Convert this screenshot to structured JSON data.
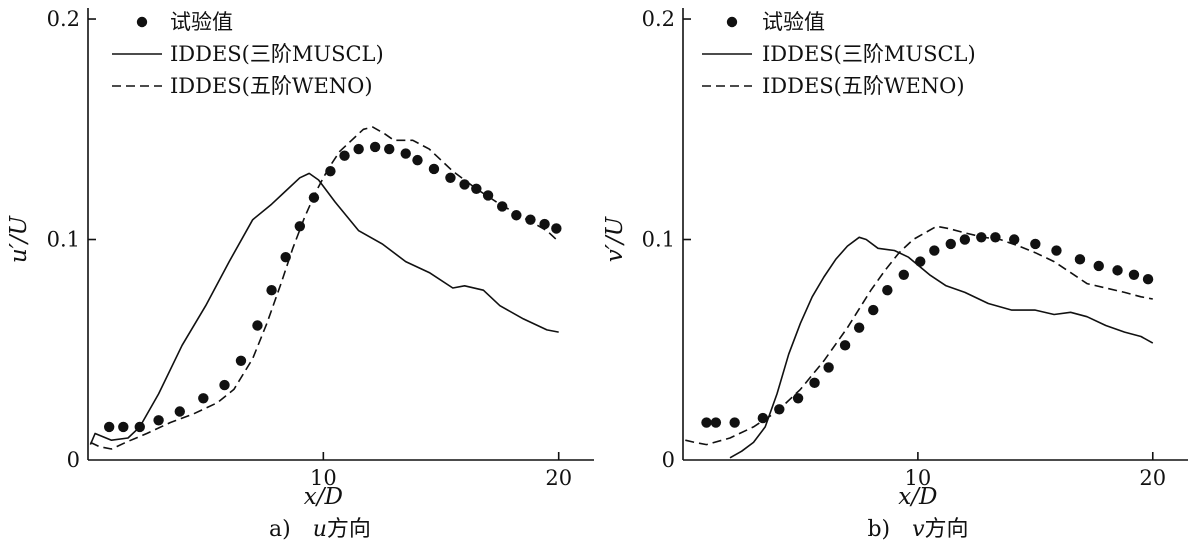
{
  "chart_data": [
    {
      "type": "line",
      "panel": "a",
      "caption_index": "a)",
      "caption_text": "u方向",
      "caption_var": "u",
      "caption_suffix": "方向",
      "xlabel": "x/D",
      "ylabel": "u′/U",
      "xlim": [
        0,
        21.5
      ],
      "ylim": [
        0,
        0.205
      ],
      "x_ticks": [
        {
          "value": 10,
          "label": "10"
        },
        {
          "value": 20,
          "label": "20"
        }
      ],
      "y_ticks": [
        {
          "value": 0,
          "label": "0"
        },
        {
          "value": 0.1,
          "label": "0.1"
        },
        {
          "value": 0.2,
          "label": "0.2"
        }
      ],
      "legend_position": "top-left",
      "series": [
        {
          "name": "试验值",
          "style": "markers",
          "color": "#111111",
          "x": [
            0.9,
            1.5,
            2.2,
            3.0,
            3.9,
            4.9,
            5.8,
            6.5,
            7.2,
            7.8,
            8.4,
            9.0,
            9.6,
            10.3,
            10.9,
            11.5,
            12.2,
            12.8,
            13.5,
            14.0,
            14.7,
            15.4,
            16.0,
            16.5,
            17.0,
            17.6,
            18.2,
            18.8,
            19.4,
            19.9
          ],
          "y": [
            0.015,
            0.015,
            0.015,
            0.018,
            0.022,
            0.028,
            0.034,
            0.045,
            0.061,
            0.077,
            0.092,
            0.106,
            0.119,
            0.131,
            0.138,
            0.141,
            0.142,
            0.141,
            0.139,
            0.136,
            0.132,
            0.128,
            0.125,
            0.123,
            0.12,
            0.115,
            0.111,
            0.109,
            0.107,
            0.105
          ]
        },
        {
          "name": "IDDES(三阶MUSCL)",
          "style": "solid",
          "color": "#111111",
          "x": [
            0.1,
            0.3,
            1.0,
            1.7,
            2.2,
            3.0,
            4.0,
            5.0,
            6.0,
            7.0,
            7.8,
            8.4,
            9.0,
            9.4,
            9.8,
            10.5,
            11.5,
            12.5,
            13.5,
            14.5,
            15.5,
            16.0,
            16.8,
            17.5,
            18.5,
            19.5,
            20.0
          ],
          "y": [
            0.007,
            0.012,
            0.009,
            0.01,
            0.015,
            0.03,
            0.052,
            0.07,
            0.09,
            0.109,
            0.116,
            0.122,
            0.128,
            0.13,
            0.127,
            0.117,
            0.104,
            0.098,
            0.09,
            0.085,
            0.078,
            0.079,
            0.077,
            0.07,
            0.064,
            0.059,
            0.058
          ]
        },
        {
          "name": "IDDES(五阶WENO)",
          "style": "dashed",
          "color": "#111111",
          "x": [
            0.1,
            0.5,
            1.0,
            1.6,
            2.5,
            3.5,
            4.5,
            5.5,
            6.2,
            7.0,
            7.6,
            8.2,
            8.7,
            9.2,
            9.7,
            10.2,
            10.7,
            11.2,
            11.7,
            12.1,
            12.6,
            13.0,
            13.8,
            14.5,
            15.5,
            16.5,
            17.5,
            18.5,
            19.5,
            20.0
          ],
          "y": [
            0.008,
            0.006,
            0.005,
            0.008,
            0.012,
            0.017,
            0.021,
            0.026,
            0.032,
            0.046,
            0.062,
            0.08,
            0.096,
            0.11,
            0.122,
            0.132,
            0.14,
            0.145,
            0.15,
            0.151,
            0.148,
            0.145,
            0.145,
            0.141,
            0.131,
            0.123,
            0.116,
            0.11,
            0.104,
            0.099
          ]
        }
      ]
    },
    {
      "type": "line",
      "panel": "b",
      "caption_index": "b)",
      "caption_text": "v方向",
      "caption_var": "v",
      "caption_suffix": "方向",
      "xlabel": "x/D",
      "ylabel": "v′/U",
      "xlim": [
        0,
        21.5
      ],
      "ylim": [
        0,
        0.205
      ],
      "x_ticks": [
        {
          "value": 10,
          "label": "10"
        },
        {
          "value": 20,
          "label": "20"
        }
      ],
      "y_ticks": [
        {
          "value": 0,
          "label": "0"
        },
        {
          "value": 0.1,
          "label": "0.1"
        },
        {
          "value": 0.2,
          "label": "0.2"
        }
      ],
      "legend_position": "top-left",
      "series": [
        {
          "name": "试验值",
          "style": "markers",
          "color": "#111111",
          "x": [
            1.0,
            1.4,
            2.2,
            3.4,
            4.1,
            4.9,
            5.6,
            6.2,
            6.9,
            7.5,
            8.1,
            8.7,
            9.4,
            10.1,
            10.7,
            11.4,
            12.0,
            12.7,
            13.3,
            14.1,
            15.0,
            15.9,
            16.9,
            17.7,
            18.5,
            19.2,
            19.8
          ],
          "y": [
            0.017,
            0.017,
            0.017,
            0.019,
            0.023,
            0.028,
            0.035,
            0.042,
            0.052,
            0.06,
            0.068,
            0.077,
            0.084,
            0.09,
            0.095,
            0.098,
            0.1,
            0.101,
            0.101,
            0.1,
            0.098,
            0.095,
            0.091,
            0.088,
            0.086,
            0.084,
            0.082
          ]
        },
        {
          "name": "IDDES(三阶MUSCL)",
          "style": "solid",
          "color": "#111111",
          "x": [
            2.0,
            2.5,
            3.0,
            3.5,
            4.0,
            4.5,
            5.0,
            5.5,
            6.0,
            6.5,
            7.0,
            7.5,
            7.8,
            8.3,
            9.0,
            9.6,
            10.5,
            11.2,
            12.0,
            13.0,
            14.0,
            15.0,
            15.8,
            16.5,
            17.2,
            18.0,
            18.8,
            19.5,
            20.0
          ],
          "y": [
            0.001,
            0.004,
            0.008,
            0.015,
            0.03,
            0.048,
            0.062,
            0.074,
            0.083,
            0.091,
            0.097,
            0.101,
            0.1,
            0.096,
            0.095,
            0.092,
            0.084,
            0.079,
            0.076,
            0.071,
            0.068,
            0.068,
            0.066,
            0.067,
            0.065,
            0.061,
            0.058,
            0.056,
            0.053
          ]
        },
        {
          "name": "IDDES(五阶WENO)",
          "style": "dashed",
          "color": "#111111",
          "x": [
            0.1,
            0.5,
            1.0,
            2.0,
            3.0,
            4.0,
            5.0,
            6.0,
            7.0,
            8.0,
            8.6,
            9.2,
            9.8,
            10.3,
            10.8,
            11.3,
            12.0,
            12.8,
            13.5,
            14.3,
            15.0,
            15.8,
            16.5,
            17.2,
            18.0,
            18.8,
            19.5,
            20.0
          ],
          "y": [
            0.009,
            0.008,
            0.007,
            0.01,
            0.015,
            0.022,
            0.032,
            0.045,
            0.06,
            0.077,
            0.086,
            0.094,
            0.1,
            0.103,
            0.106,
            0.105,
            0.103,
            0.101,
            0.1,
            0.097,
            0.094,
            0.09,
            0.085,
            0.08,
            0.078,
            0.076,
            0.074,
            0.073
          ]
        }
      ]
    }
  ]
}
